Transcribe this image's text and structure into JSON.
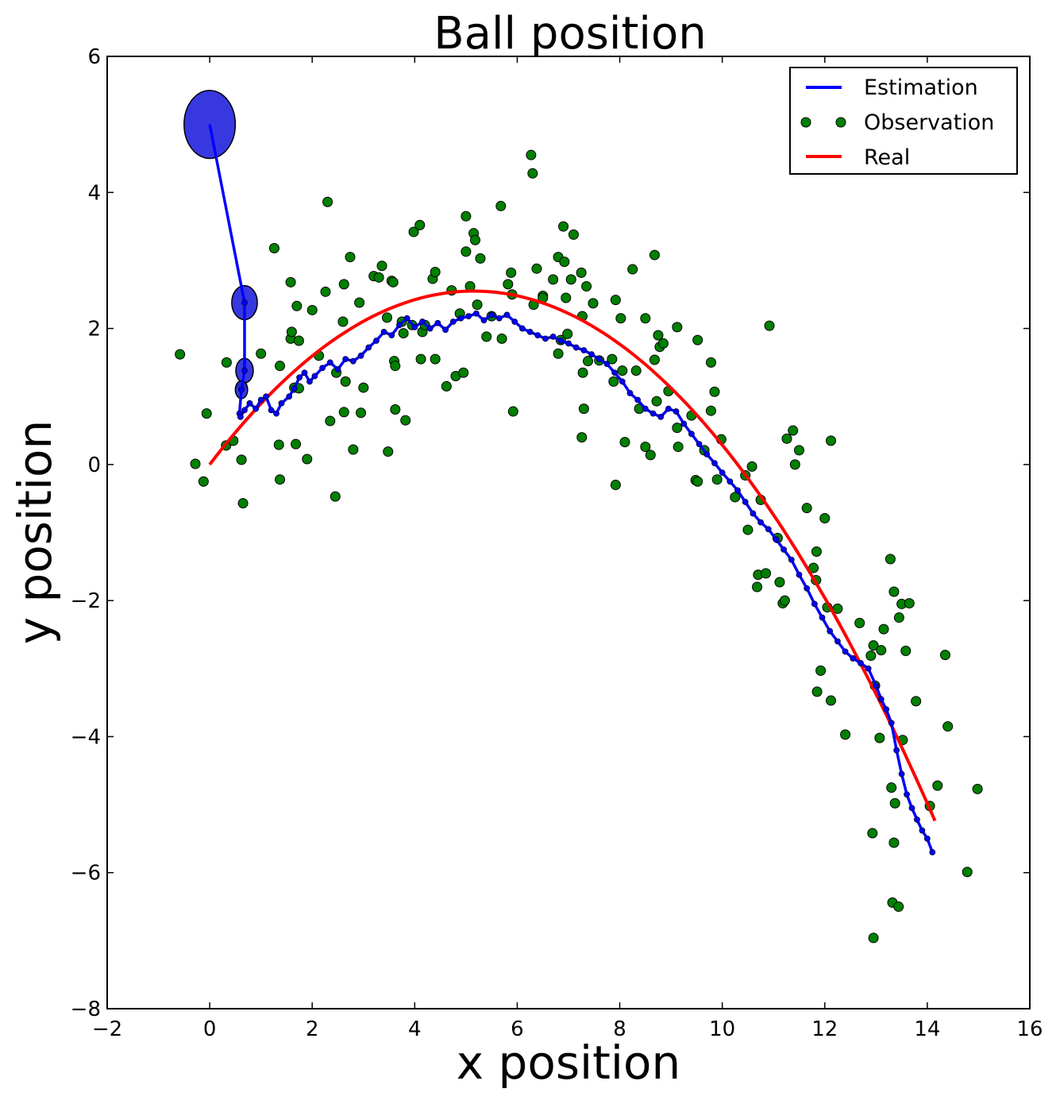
{
  "chart_data": {
    "type": "scatter",
    "title": "Ball position",
    "xlabel": "x position",
    "ylabel": "y position",
    "xlim": [
      -2,
      16
    ],
    "ylim": [
      -8,
      6
    ],
    "xticks": [
      -2,
      0,
      2,
      4,
      6,
      8,
      10,
      12,
      14,
      16
    ],
    "yticks": [
      -8,
      -6,
      -4,
      -2,
      0,
      2,
      4,
      6
    ],
    "xtick_labels": [
      "−2",
      "0",
      "2",
      "4",
      "6",
      "8",
      "10",
      "12",
      "14",
      "16"
    ],
    "ytick_labels": [
      "−8",
      "−6",
      "−4",
      "−2",
      "0",
      "2",
      "4",
      "6"
    ],
    "grid": false,
    "legend_position": "top-right",
    "legend": [
      "Estimation",
      "Observation",
      "Real"
    ],
    "colors": {
      "estimation": "#0000ff",
      "observation": "#008000",
      "real": "#ff0000",
      "ellipse": "#2222dd"
    },
    "series": [
      {
        "name": "Real",
        "type": "line",
        "curve": {
          "x_start": 0,
          "x_end": 14.15,
          "vertex_x": 5.15,
          "vertex_y": 2.55
        }
      },
      {
        "name": "Estimation",
        "type": "line-with-markers",
        "x": [
          0,
          0.68,
          0.68,
          0.62,
          0.58,
          0.6,
          0.68,
          0.78,
          0.9,
          1.0,
          1.1,
          1.2,
          1.3,
          1.4,
          1.55,
          1.65,
          1.75,
          1.85,
          1.95,
          2.05,
          2.2,
          2.35,
          2.5,
          2.65,
          2.8,
          2.95,
          3.1,
          3.25,
          3.4,
          3.55,
          3.7,
          3.85,
          4.0,
          4.15,
          4.3,
          4.45,
          4.6,
          4.75,
          4.9,
          5.05,
          5.2,
          5.35,
          5.5,
          5.65,
          5.8,
          5.95,
          6.1,
          6.25,
          6.4,
          6.55,
          6.7,
          6.85,
          7.0,
          7.15,
          7.3,
          7.45,
          7.6,
          7.75,
          7.9,
          8.05,
          8.2,
          8.35,
          8.5,
          8.65,
          8.8,
          8.95,
          9.1,
          9.25,
          9.4,
          9.55,
          9.7,
          9.85,
          10.0,
          10.15,
          10.3,
          10.45,
          10.6,
          10.75,
          10.9,
          11.05,
          11.2,
          11.35,
          11.5,
          11.65,
          11.8,
          11.95,
          12.1,
          12.25,
          12.4,
          12.55,
          12.7,
          12.85,
          13.0,
          13.1,
          13.2,
          13.3,
          13.4,
          13.5,
          13.6,
          13.7,
          13.8,
          13.9,
          14.0,
          14.1
        ],
        "y": [
          5.0,
          2.38,
          1.38,
          1.1,
          0.75,
          0.7,
          0.8,
          0.9,
          0.82,
          0.95,
          1.0,
          0.8,
          0.75,
          0.9,
          1.0,
          1.12,
          1.28,
          1.35,
          1.22,
          1.3,
          1.42,
          1.5,
          1.4,
          1.55,
          1.52,
          1.6,
          1.72,
          1.82,
          1.95,
          1.9,
          2.05,
          2.15,
          2.02,
          2.1,
          2.0,
          2.08,
          1.98,
          2.1,
          2.15,
          2.18,
          2.22,
          2.12,
          2.2,
          2.15,
          2.2,
          2.1,
          2.0,
          1.95,
          1.9,
          1.85,
          1.88,
          1.82,
          1.78,
          1.72,
          1.68,
          1.62,
          1.55,
          1.48,
          1.35,
          1.22,
          1.05,
          0.95,
          0.82,
          0.75,
          0.7,
          0.82,
          0.78,
          0.6,
          0.45,
          0.3,
          0.15,
          0.02,
          -0.12,
          -0.25,
          -0.38,
          -0.55,
          -0.72,
          -0.85,
          -0.95,
          -1.1,
          -1.25,
          -1.4,
          -1.62,
          -1.82,
          -2.05,
          -2.25,
          -2.45,
          -2.6,
          -2.75,
          -2.85,
          -2.92,
          -3.0,
          -3.25,
          -3.45,
          -3.6,
          -3.8,
          -4.2,
          -4.55,
          -4.85,
          -5.05,
          -5.22,
          -5.38,
          -5.5,
          -5.7
        ],
        "uncertainty_ellipses": [
          {
            "x": 0,
            "y": 5.0,
            "rx": 0.5,
            "ry": 0.5
          },
          {
            "x": 0.68,
            "y": 2.38,
            "rx": 0.25,
            "ry": 0.25
          },
          {
            "x": 0.68,
            "y": 1.38,
            "rx": 0.17,
            "ry": 0.18
          },
          {
            "x": 0.62,
            "y": 1.1,
            "rx": 0.12,
            "ry": 0.13
          }
        ]
      },
      {
        "name": "Observation",
        "type": "scatter",
        "points": [
          [
            -0.58,
            1.62
          ],
          [
            -0.28,
            0.01
          ],
          [
            -0.12,
            -0.25
          ],
          [
            -0.06,
            0.75
          ],
          [
            0.33,
            1.5
          ],
          [
            0.32,
            0.28
          ],
          [
            0.46,
            0.35
          ],
          [
            0.62,
            0.07
          ],
          [
            0.65,
            -0.57
          ],
          [
            0.63,
            1.16
          ],
          [
            1.0,
            1.63
          ],
          [
            1.26,
            3.18
          ],
          [
            1.37,
            1.45
          ],
          [
            1.35,
            0.29
          ],
          [
            1.37,
            -0.22
          ],
          [
            1.58,
            1.85
          ],
          [
            1.58,
            2.68
          ],
          [
            1.6,
            1.95
          ],
          [
            1.65,
            1.13
          ],
          [
            1.68,
            0.3
          ],
          [
            1.7,
            2.33
          ],
          [
            1.74,
            1.82
          ],
          [
            1.74,
            1.12
          ],
          [
            1.9,
            0.08
          ],
          [
            2.0,
            2.27
          ],
          [
            2.13,
            1.6
          ],
          [
            2.26,
            2.54
          ],
          [
            2.3,
            3.86
          ],
          [
            2.35,
            0.64
          ],
          [
            2.45,
            -0.47
          ],
          [
            2.47,
            1.35
          ],
          [
            2.6,
            2.1
          ],
          [
            2.62,
            2.65
          ],
          [
            2.62,
            0.77
          ],
          [
            2.65,
            1.22
          ],
          [
            2.74,
            3.05
          ],
          [
            2.8,
            0.22
          ],
          [
            2.92,
            2.38
          ],
          [
            2.95,
            0.76
          ],
          [
            3.0,
            1.13
          ],
          [
            3.2,
            2.77
          ],
          [
            3.3,
            2.75
          ],
          [
            3.36,
            2.92
          ],
          [
            3.46,
            2.16
          ],
          [
            3.48,
            0.19
          ],
          [
            3.55,
            2.7
          ],
          [
            3.58,
            2.68
          ],
          [
            3.6,
            1.52
          ],
          [
            3.62,
            1.45
          ],
          [
            3.62,
            0.81
          ],
          [
            3.75,
            2.1
          ],
          [
            3.78,
            1.93
          ],
          [
            3.82,
            0.65
          ],
          [
            3.95,
            2.05
          ],
          [
            3.98,
            3.42
          ],
          [
            4.1,
            3.52
          ],
          [
            4.12,
            1.55
          ],
          [
            4.15,
            1.95
          ],
          [
            4.2,
            2.05
          ],
          [
            4.35,
            2.73
          ],
          [
            4.4,
            1.55
          ],
          [
            4.4,
            2.83
          ],
          [
            4.62,
            1.15
          ],
          [
            4.72,
            2.56
          ],
          [
            4.8,
            1.3
          ],
          [
            4.88,
            2.22
          ],
          [
            4.95,
            1.35
          ],
          [
            5.0,
            3.65
          ],
          [
            5.0,
            3.13
          ],
          [
            5.08,
            2.62
          ],
          [
            5.15,
            3.4
          ],
          [
            5.18,
            3.3
          ],
          [
            5.22,
            2.35
          ],
          [
            5.28,
            3.03
          ],
          [
            5.4,
            1.88
          ],
          [
            5.5,
            2.18
          ],
          [
            5.68,
            3.8
          ],
          [
            5.7,
            1.85
          ],
          [
            5.82,
            2.65
          ],
          [
            5.88,
            2.82
          ],
          [
            5.9,
            2.5
          ],
          [
            5.92,
            0.78
          ],
          [
            6.27,
            4.55
          ],
          [
            6.3,
            4.28
          ],
          [
            6.32,
            2.35
          ],
          [
            6.38,
            2.88
          ],
          [
            6.5,
            2.48
          ],
          [
            6.5,
            2.45
          ],
          [
            6.7,
            2.72
          ],
          [
            6.8,
            3.05
          ],
          [
            6.8,
            1.63
          ],
          [
            6.85,
            1.83
          ],
          [
            6.9,
            3.5
          ],
          [
            6.92,
            2.98
          ],
          [
            6.95,
            2.45
          ],
          [
            6.98,
            1.92
          ],
          [
            7.05,
            2.72
          ],
          [
            7.1,
            3.38
          ],
          [
            7.25,
            2.82
          ],
          [
            7.27,
            2.18
          ],
          [
            7.28,
            1.35
          ],
          [
            7.3,
            0.82
          ],
          [
            7.26,
            0.4
          ],
          [
            7.35,
            2.62
          ],
          [
            7.38,
            1.52
          ],
          [
            7.48,
            2.37
          ],
          [
            7.6,
            1.53
          ],
          [
            7.85,
            1.55
          ],
          [
            7.88,
            1.22
          ],
          [
            7.92,
            2.42
          ],
          [
            7.92,
            -0.3
          ],
          [
            8.02,
            2.15
          ],
          [
            8.05,
            1.38
          ],
          [
            8.1,
            0.33
          ],
          [
            8.25,
            2.87
          ],
          [
            8.32,
            1.38
          ],
          [
            8.38,
            0.82
          ],
          [
            8.5,
            2.15
          ],
          [
            8.5,
            0.26
          ],
          [
            8.6,
            0.14
          ],
          [
            8.68,
            3.08
          ],
          [
            8.68,
            1.54
          ],
          [
            8.72,
            0.93
          ],
          [
            8.75,
            1.9
          ],
          [
            8.78,
            1.73
          ],
          [
            8.85,
            1.78
          ],
          [
            8.95,
            1.08
          ],
          [
            9.12,
            2.02
          ],
          [
            9.12,
            0.54
          ],
          [
            9.14,
            0.26
          ],
          [
            9.4,
            0.72
          ],
          [
            9.48,
            -0.23
          ],
          [
            9.52,
            1.83
          ],
          [
            9.52,
            -0.25
          ],
          [
            9.65,
            0.21
          ],
          [
            9.78,
            1.5
          ],
          [
            9.78,
            0.79
          ],
          [
            9.85,
            1.07
          ],
          [
            9.9,
            -0.22
          ],
          [
            9.98,
            0.37
          ],
          [
            10.25,
            -0.48
          ],
          [
            10.45,
            -0.16
          ],
          [
            10.5,
            -0.96
          ],
          [
            10.58,
            -0.03
          ],
          [
            10.68,
            -1.8
          ],
          [
            10.7,
            -1.62
          ],
          [
            10.75,
            -0.52
          ],
          [
            10.85,
            -1.6
          ],
          [
            10.92,
            2.04
          ],
          [
            11.08,
            -1.08
          ],
          [
            11.12,
            -1.73
          ],
          [
            11.18,
            -2.04
          ],
          [
            11.22,
            -2.0
          ],
          [
            11.26,
            0.38
          ],
          [
            11.38,
            0.5
          ],
          [
            11.42,
            0.0
          ],
          [
            11.5,
            0.21
          ],
          [
            11.65,
            -0.64
          ],
          [
            11.78,
            -1.52
          ],
          [
            11.83,
            -1.7
          ],
          [
            11.84,
            -1.28
          ],
          [
            11.85,
            -3.34
          ],
          [
            11.92,
            -3.03
          ],
          [
            12.0,
            -0.79
          ],
          [
            12.05,
            -2.1
          ],
          [
            12.12,
            0.35
          ],
          [
            12.12,
            -3.47
          ],
          [
            12.25,
            -2.12
          ],
          [
            12.4,
            -3.97
          ],
          [
            12.68,
            -2.33
          ],
          [
            12.9,
            -2.81
          ],
          [
            12.93,
            -5.42
          ],
          [
            12.95,
            -6.96
          ],
          [
            12.95,
            -2.66
          ],
          [
            12.98,
            -3.25
          ],
          [
            13.07,
            -4.02
          ],
          [
            13.1,
            -2.73
          ],
          [
            13.15,
            -2.42
          ],
          [
            13.28,
            -1.39
          ],
          [
            13.3,
            -4.75
          ],
          [
            13.32,
            -6.44
          ],
          [
            13.35,
            -1.87
          ],
          [
            13.35,
            -5.56
          ],
          [
            13.37,
            -4.98
          ],
          [
            13.44,
            -6.5
          ],
          [
            13.45,
            -2.25
          ],
          [
            13.5,
            -2.05
          ],
          [
            13.52,
            -4.05
          ],
          [
            13.58,
            -2.74
          ],
          [
            13.65,
            -2.04
          ],
          [
            13.78,
            -3.48
          ],
          [
            14.05,
            -5.02
          ],
          [
            14.2,
            -4.72
          ],
          [
            14.35,
            -2.8
          ],
          [
            14.4,
            -3.85
          ],
          [
            14.78,
            -5.99
          ],
          [
            14.98,
            -4.77
          ]
        ]
      }
    ]
  }
}
